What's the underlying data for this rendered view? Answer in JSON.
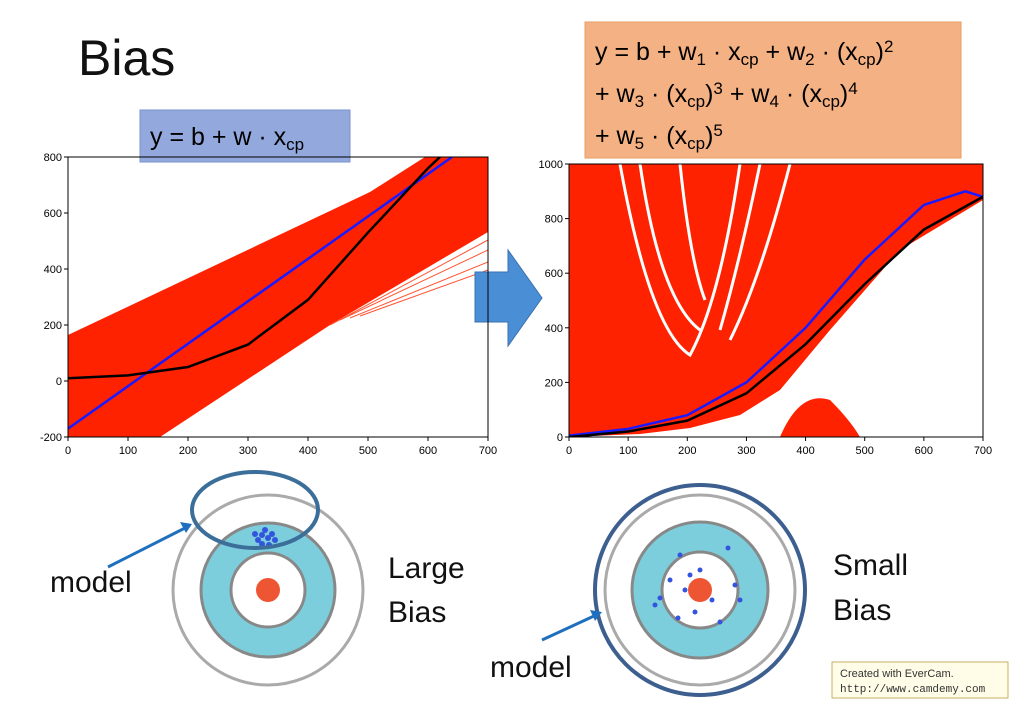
{
  "title": "Bias",
  "formulas": [
    {
      "lines": [
        [
          {
            "text": "y = b + w · x"
          },
          {
            "sub": "cp"
          }
        ]
      ]
    },
    {
      "lines": [
        [
          {
            "text": "y = b + w"
          },
          {
            "sub": "1"
          },
          {
            "text": " · x"
          },
          {
            "sub": "cp"
          },
          {
            "text": " + w"
          },
          {
            "sub": "2"
          },
          {
            "text": " · (x"
          },
          {
            "sub": "cp"
          },
          {
            "text": ")"
          },
          {
            "sup": "2"
          }
        ],
        [
          {
            "text": "+ w"
          },
          {
            "sub": "3"
          },
          {
            "text": " · (x"
          },
          {
            "sub": "cp"
          },
          {
            "text": ")"
          },
          {
            "sup": "3"
          },
          {
            "text": " + w"
          },
          {
            "sub": "4"
          },
          {
            "text": " · (x"
          },
          {
            "sub": "cp"
          },
          {
            "text": ")"
          },
          {
            "sup": "4"
          }
        ],
        [
          {
            "text": "+ w"
          },
          {
            "sub": "5"
          },
          {
            "text": " · (x"
          },
          {
            "sub": "cp"
          },
          {
            "text": ")"
          },
          {
            "sup": "5"
          }
        ]
      ]
    }
  ],
  "chart_data": [
    {
      "type": "line",
      "xlim": [
        0,
        700
      ],
      "ylim": [
        -200,
        800
      ],
      "xticks": [
        0,
        100,
        200,
        300,
        400,
        500,
        600,
        700
      ],
      "yticks": [
        -200,
        0,
        200,
        400,
        600,
        800
      ],
      "series": [
        {
          "color": "#1a1aff",
          "x": [
            0,
            640
          ],
          "values": [
            -170,
            800
          ]
        },
        {
          "color": "#000000",
          "x": [
            0,
            100,
            200,
            300,
            400,
            500,
            600,
            620
          ],
          "values": [
            10,
            20,
            50,
            130,
            290,
            530,
            760,
            800
          ]
        }
      ]
    },
    {
      "type": "line",
      "xlim": [
        0,
        700
      ],
      "ylim": [
        0,
        1000
      ],
      "xticks": [
        0,
        100,
        200,
        300,
        400,
        500,
        600,
        700
      ],
      "yticks": [
        0,
        200,
        400,
        600,
        800,
        1000
      ],
      "series": [
        {
          "color": "#1a1aff",
          "x": [
            0,
            100,
            200,
            300,
            400,
            500,
            600,
            670,
            700
          ],
          "values": [
            5,
            30,
            80,
            200,
            400,
            650,
            850,
            900,
            880
          ]
        },
        {
          "color": "#000000",
          "x": [
            0,
            100,
            200,
            300,
            400,
            500,
            600,
            700
          ],
          "values": [
            0,
            20,
            60,
            160,
            340,
            560,
            760,
            880
          ]
        }
      ]
    }
  ],
  "labels": {
    "model_left": "model",
    "large": "Large",
    "large_bias": "Bias",
    "small": "Small",
    "small_bias": "Bias",
    "model_right": "model"
  },
  "watermark": [
    "Created with EverCam.",
    "http://www.camdemy.com"
  ]
}
